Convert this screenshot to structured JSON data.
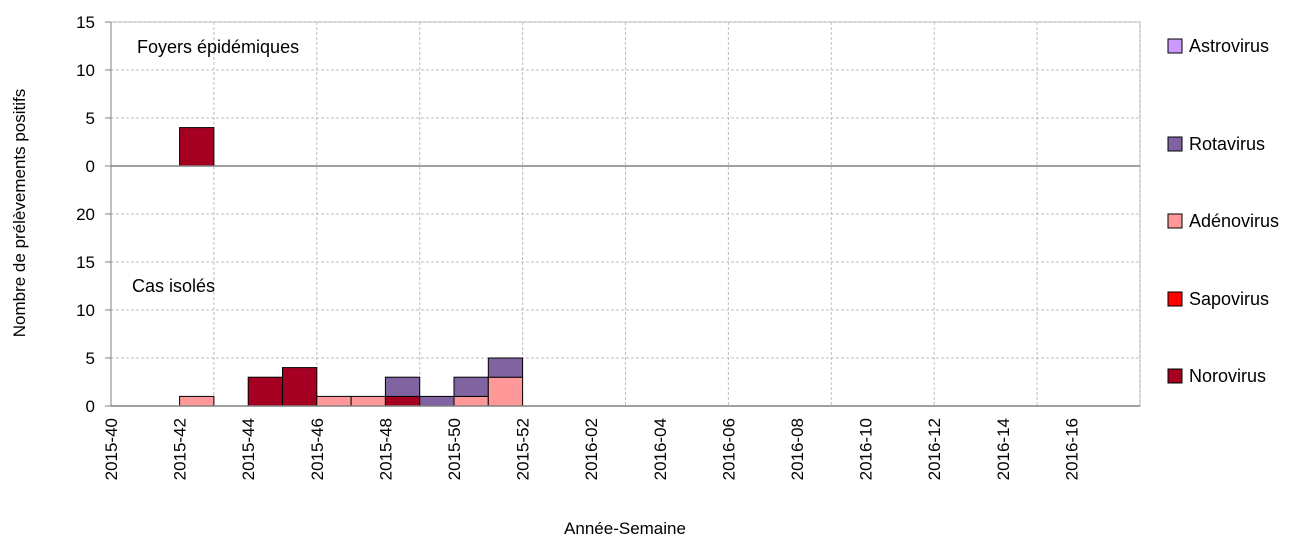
{
  "chart_data": {
    "type": "bar",
    "stacked": true,
    "xlabel": "Année-Semaine",
    "ylabel": "Nombre de prélèvements positifs",
    "grid": true,
    "legend_position": "right",
    "x_tick_labels": [
      "2015-40",
      "2015-42",
      "2015-44",
      "2015-46",
      "2015-48",
      "2015-50",
      "2015-52",
      "2016-02",
      "2016-04",
      "2016-06",
      "2016-08",
      "2016-10",
      "2016-12",
      "2016-14",
      "2016-16"
    ],
    "categories": [
      "2015-40",
      "2015-41",
      "2015-42",
      "2015-43",
      "2015-44",
      "2015-45",
      "2015-46",
      "2015-47",
      "2015-48",
      "2015-49",
      "2015-50",
      "2015-51",
      "2015-52",
      "2016-01",
      "2016-02",
      "2016-03",
      "2016-04",
      "2016-05",
      "2016-06",
      "2016-07",
      "2016-08",
      "2016-09",
      "2016-10",
      "2016-11",
      "2016-12",
      "2016-13",
      "2016-14",
      "2016-15",
      "2016-16",
      "2016-17"
    ],
    "legend": [
      {
        "name": "Astrovirus",
        "color": "#cc99ff"
      },
      {
        "name": "Rotavirus",
        "color": "#8064a2"
      },
      {
        "name": "Adénovirus",
        "color": "#ff9999"
      },
      {
        "name": "Sapovirus",
        "color": "#ff0000"
      },
      {
        "name": "Norovirus",
        "color": "#a50021"
      }
    ],
    "panels": [
      {
        "label": "Foyers épidémiques",
        "ylim": [
          0,
          15
        ],
        "yticks": [
          "0",
          "5",
          "10",
          "15"
        ],
        "series": [
          {
            "name": "Norovirus",
            "values": [
              0,
              0,
              4,
              0,
              0,
              0,
              0,
              0,
              0,
              0,
              0,
              0,
              0,
              0,
              0,
              0,
              0,
              0,
              0,
              0,
              0,
              0,
              0,
              0,
              0,
              0,
              0,
              0,
              0,
              0
            ]
          },
          {
            "name": "Sapovirus",
            "values": [
              0,
              0,
              0,
              0,
              0,
              0,
              0,
              0,
              0,
              0,
              0,
              0,
              0,
              0,
              0,
              0,
              0,
              0,
              0,
              0,
              0,
              0,
              0,
              0,
              0,
              0,
              0,
              0,
              0,
              0
            ]
          },
          {
            "name": "Adénovirus",
            "values": [
              0,
              0,
              0,
              0,
              0,
              0,
              0,
              0,
              0,
              0,
              0,
              0,
              0,
              0,
              0,
              0,
              0,
              0,
              0,
              0,
              0,
              0,
              0,
              0,
              0,
              0,
              0,
              0,
              0,
              0
            ]
          },
          {
            "name": "Rotavirus",
            "values": [
              0,
              0,
              0,
              0,
              0,
              0,
              0,
              0,
              0,
              0,
              0,
              0,
              0,
              0,
              0,
              0,
              0,
              0,
              0,
              0,
              0,
              0,
              0,
              0,
              0,
              0,
              0,
              0,
              0,
              0
            ]
          },
          {
            "name": "Astrovirus",
            "values": [
              0,
              0,
              0,
              0,
              0,
              0,
              0,
              0,
              0,
              0,
              0,
              0,
              0,
              0,
              0,
              0,
              0,
              0,
              0,
              0,
              0,
              0,
              0,
              0,
              0,
              0,
              0,
              0,
              0,
              0
            ]
          }
        ]
      },
      {
        "label": "Cas isolés",
        "ylim": [
          0,
          20
        ],
        "yticks": [
          "0",
          "5",
          "10",
          "15",
          "20"
        ],
        "series": [
          {
            "name": "Norovirus",
            "values": [
              0,
              0,
              0,
              0,
              3,
              4,
              0,
              0,
              1,
              0,
              0,
              0,
              0,
              0,
              0,
              0,
              0,
              0,
              0,
              0,
              0,
              0,
              0,
              0,
              0,
              0,
              0,
              0,
              0,
              0
            ]
          },
          {
            "name": "Sapovirus",
            "values": [
              0,
              0,
              0,
              0,
              0,
              0,
              0,
              0,
              0,
              0,
              0,
              0,
              0,
              0,
              0,
              0,
              0,
              0,
              0,
              0,
              0,
              0,
              0,
              0,
              0,
              0,
              0,
              0,
              0,
              0
            ]
          },
          {
            "name": "Adénovirus",
            "values": [
              0,
              0,
              1,
              0,
              0,
              0,
              1,
              1,
              0,
              0,
              1,
              3,
              0,
              0,
              0,
              0,
              0,
              0,
              0,
              0,
              0,
              0,
              0,
              0,
              0,
              0,
              0,
              0,
              0,
              0
            ]
          },
          {
            "name": "Rotavirus",
            "values": [
              0,
              0,
              0,
              0,
              0,
              0,
              0,
              0,
              2,
              1,
              2,
              2,
              0,
              0,
              0,
              0,
              0,
              0,
              0,
              0,
              0,
              0,
              0,
              0,
              0,
              0,
              0,
              0,
              0,
              0
            ]
          },
          {
            "name": "Astrovirus",
            "values": [
              0,
              0,
              0,
              0,
              0,
              0,
              0,
              0,
              0,
              0,
              0,
              0,
              0,
              0,
              0,
              0,
              0,
              0,
              0,
              0,
              0,
              0,
              0,
              0,
              0,
              0,
              0,
              0,
              0,
              0
            ]
          }
        ]
      }
    ]
  }
}
